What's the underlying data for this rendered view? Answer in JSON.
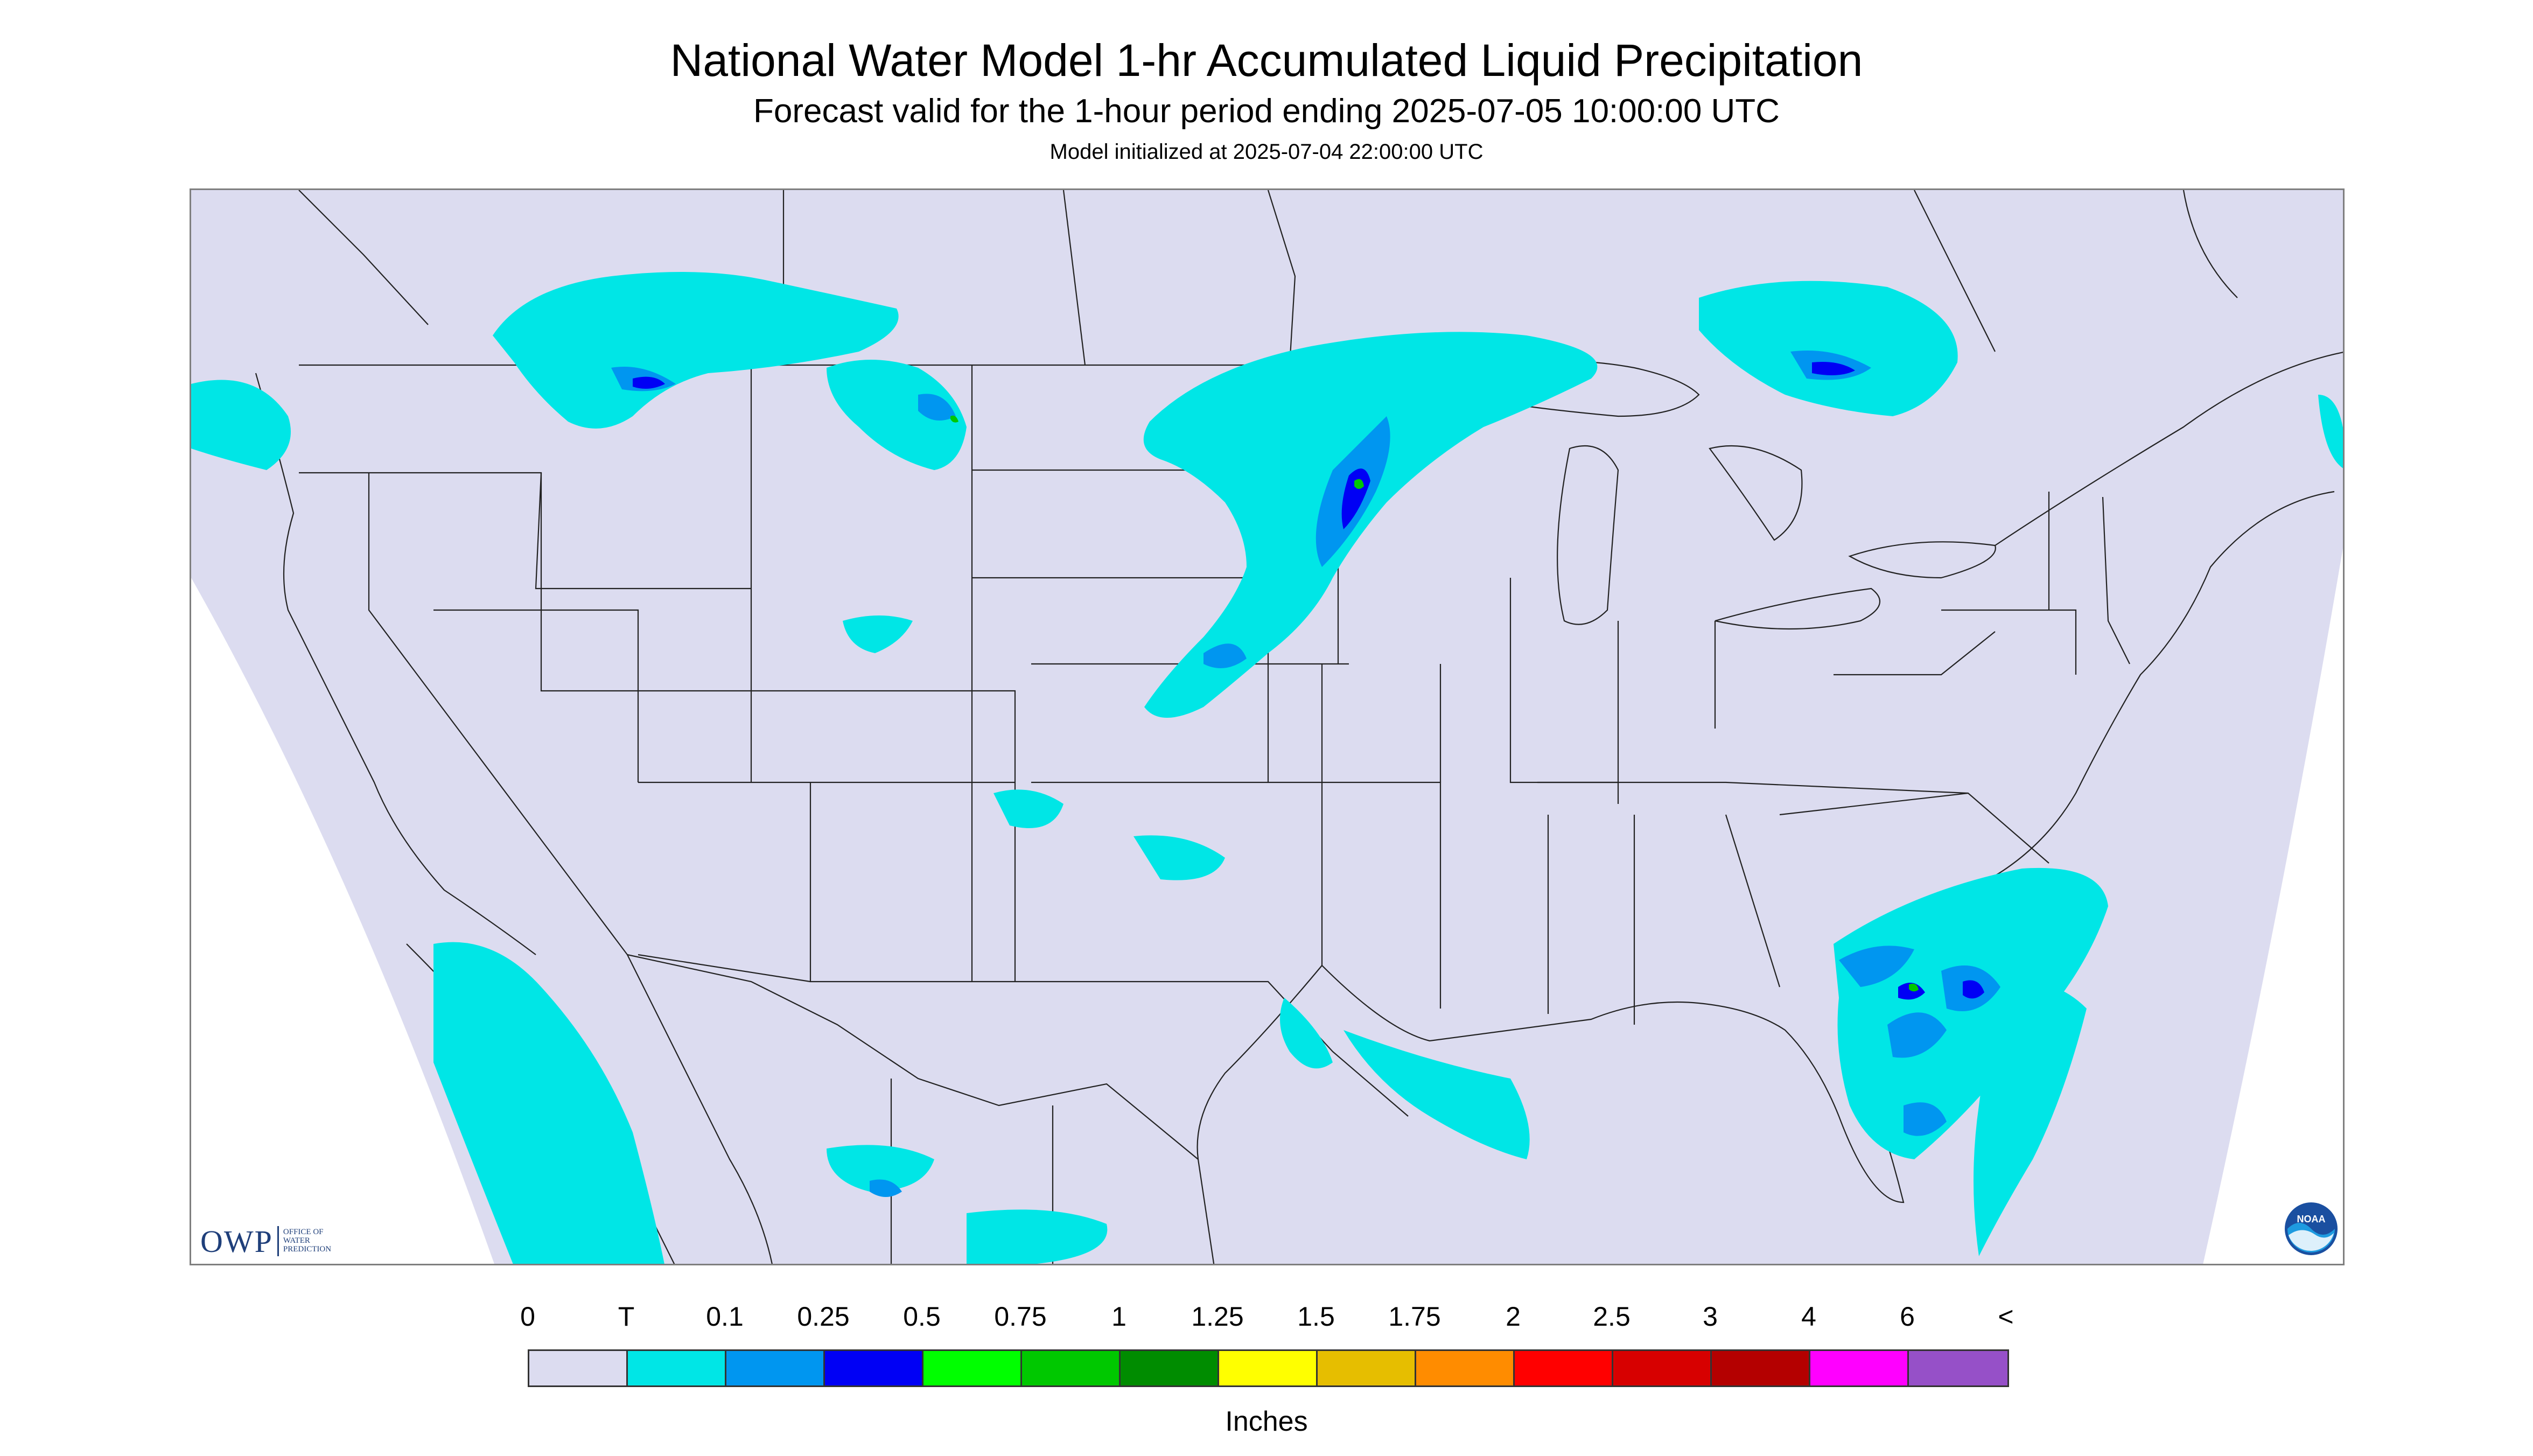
{
  "title": "National Water Model 1-hr Accumulated Liquid Precipitation",
  "subtitle": "Forecast valid for the 1-hour period ending 2025-07-05 10:00:00 UTC",
  "init_text": "Model initialized at 2025-07-04 22:00:00 UTC",
  "legend": {
    "units": "Inches",
    "labels": [
      "0",
      "T",
      "0.1",
      "0.25",
      "0.5",
      "0.75",
      "1",
      "1.25",
      "1.5",
      "1.75",
      "2",
      "2.5",
      "3",
      "4",
      "6",
      "<"
    ],
    "colors": [
      "#dcdcf0",
      "#00e6e6",
      "#0096f0",
      "#0000f5",
      "#00ff00",
      "#00c800",
      "#008c00",
      "#ffff00",
      "#e6be00",
      "#ff8c00",
      "#ff0000",
      "#d70000",
      "#b40000",
      "#ff00ff",
      "#9650c8"
    ]
  },
  "logos": {
    "owp": {
      "big": "OWP",
      "small_1": "OFFICE OF",
      "small_2": "WATER",
      "small_3": "PREDICTION"
    },
    "noaa": {
      "text": "NOAA"
    }
  },
  "map": {
    "background_color": "#dcdcf0",
    "border_color": "#333333"
  }
}
